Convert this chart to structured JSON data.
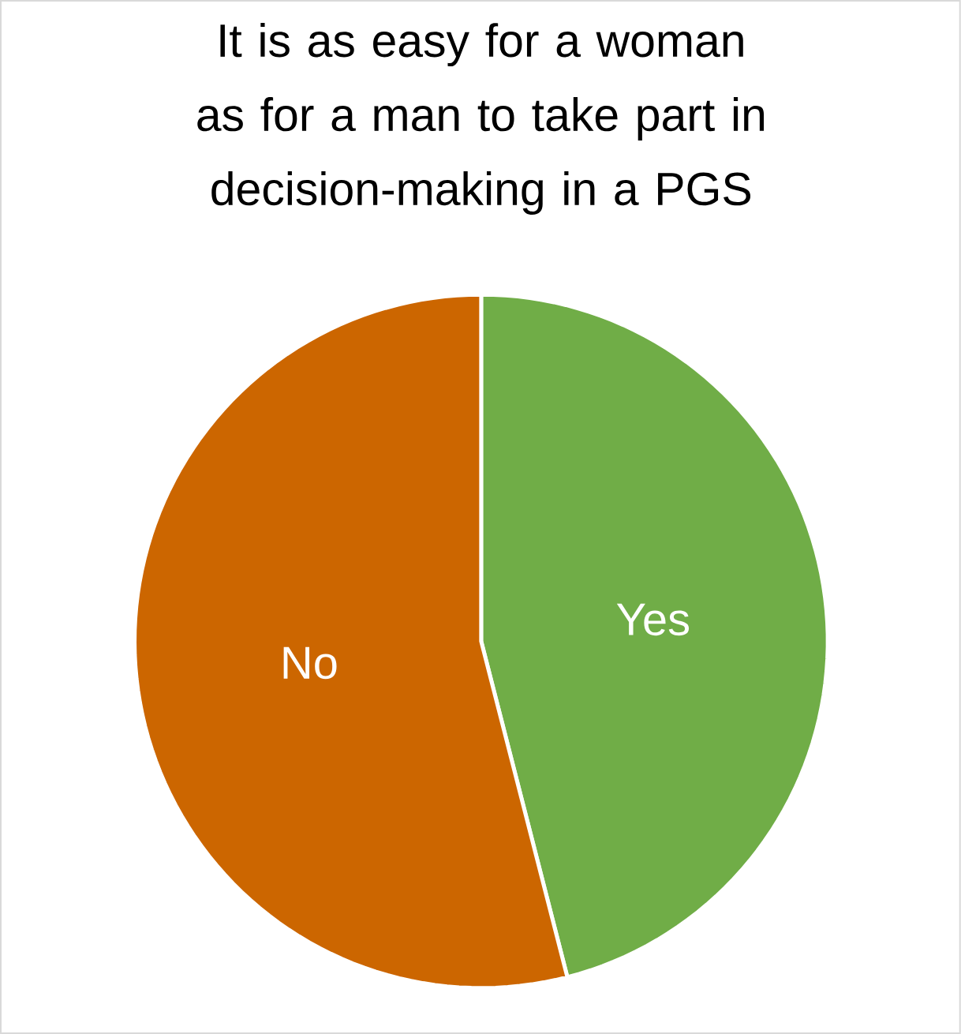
{
  "chart_data": {
    "type": "pie",
    "title": "It is as easy for a woman as for a man to take part in decision-making in a PGS",
    "categories": [
      "Yes",
      "No"
    ],
    "values": [
      46,
      54
    ],
    "colors": [
      "#70ad47",
      "#cc6600"
    ]
  }
}
